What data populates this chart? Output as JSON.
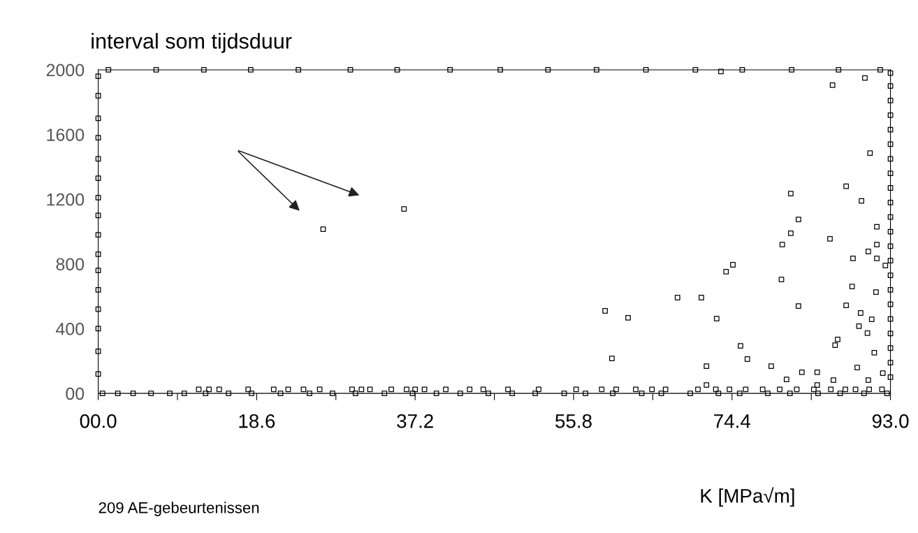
{
  "chart_data": {
    "type": "scatter",
    "title": "interval som tijdsduur",
    "xlabel": "K [MPa√m]",
    "annotations": [
      "209 AE-gebeurtenissen"
    ],
    "marker": "square",
    "grid": false,
    "xlim": [
      0,
      93
    ],
    "ylim": [
      0,
      2000
    ],
    "xticks": [
      {
        "value": 0,
        "label": "00.0"
      },
      {
        "value": 9.3,
        "label": null
      },
      18.6,
      {
        "value": 27.9,
        "label": null
      },
      37.2,
      {
        "value": 46.5,
        "label": null
      },
      55.8,
      {
        "value": 65.1,
        "label": null
      },
      74.4,
      {
        "value": 83.7,
        "label": null
      },
      {
        "value": 93,
        "label": "93.0"
      }
    ],
    "yticks": [
      {
        "value": 0,
        "label": "00"
      },
      400,
      800,
      1200,
      1600,
      2000
    ],
    "series": [
      {
        "color": "#000000",
        "x": [
          26.4,
          35.9,
          73.1,
          86.2,
          90.0,
          90.6,
          87.8,
          81.3,
          89.6,
          82.2,
          91.4,
          81.3,
          85.9,
          80.3,
          91.4,
          90.4,
          88.6,
          91.4,
          92.4,
          74.5,
          73.7,
          80.2,
          88.5,
          91.3,
          68.0,
          70.8,
          82.2,
          87.8,
          59.5,
          62.2,
          72.6,
          89.5,
          90.8,
          89.3,
          90.3,
          86.8,
          86.5,
          75.4,
          91.1,
          60.3,
          76.2,
          71.4,
          79.0,
          89.1,
          80.8,
          82.6,
          84.4,
          86.3,
          90.4,
          92.1,
          71.4,
          84.4,
          11.8,
          13.0,
          14.2,
          17.6,
          20.6,
          22.3,
          24.1,
          26.0,
          29.8,
          30.9,
          31.9,
          34.4,
          36.2,
          37.2,
          38.3,
          40.8,
          43.6,
          45.2,
          48.1,
          51.7,
          56.1,
          59.1,
          60.8,
          63.1,
          65.0,
          66.6,
          70.4,
          72.5,
          74.1,
          76.0,
          78.0,
          80.0,
          82.0,
          84.0,
          86.0,
          87.7,
          88.9,
          90.5,
          92.0,
          0.5,
          2.3,
          4.1,
          6.2,
          8.4,
          10.1,
          12.6,
          15.3,
          18.0,
          21.4,
          24.8,
          27.5,
          30.2,
          33.6,
          36.9,
          39.7,
          42.5,
          45.8,
          48.6,
          51.3,
          54.7,
          57.2,
          60.4,
          63.8,
          66.1,
          69.5,
          72.8,
          75.3,
          78.6,
          81.2,
          84.5,
          87.1,
          89.9,
          92.6,
          0,
          0,
          0,
          0,
          0,
          0,
          0,
          0,
          0,
          0,
          0,
          0,
          0,
          0,
          0,
          0,
          93,
          93,
          93,
          93,
          93,
          93,
          93,
          93,
          93,
          93,
          93,
          93,
          93,
          93,
          93,
          93,
          93,
          93,
          93,
          93,
          93,
          93,
          1.2,
          6.8,
          12.4,
          17.9,
          23.5,
          29.6,
          35.1,
          41.3,
          47.2,
          52.8,
          58.5,
          64.3,
          70.1,
          75.6,
          81.4,
          86.9,
          91.8
        ],
        "values": [
          1015,
          1140,
          1990,
          1905,
          1950,
          1485,
          1280,
          1235,
          1190,
          1075,
          1030,
          990,
          955,
          920,
          920,
          877,
          834,
          834,
          790,
          795,
          752,
          704,
          661,
          626,
          592,
          592,
          540,
          544,
          510,
          467,
          462,
          497,
          458,
          415,
          372,
          333,
          298,
          294,
          251,
          216,
          212,
          168,
          168,
          160,
          86,
          130,
          130,
          82,
          82,
          125,
          52,
          52,
          25,
          25,
          25,
          25,
          25,
          25,
          25,
          25,
          25,
          25,
          25,
          25,
          25,
          25,
          25,
          25,
          25,
          25,
          25,
          25,
          25,
          25,
          25,
          25,
          25,
          25,
          25,
          25,
          25,
          25,
          25,
          25,
          25,
          25,
          25,
          25,
          25,
          25,
          25,
          0,
          0,
          0,
          0,
          0,
          0,
          0,
          0,
          0,
          0,
          0,
          0,
          0,
          0,
          0,
          0,
          0,
          0,
          0,
          0,
          0,
          0,
          0,
          0,
          0,
          0,
          0,
          0,
          0,
          0,
          0,
          0,
          0,
          0,
          1960,
          1840,
          1700,
          1580,
          1450,
          1330,
          1210,
          1100,
          980,
          860,
          760,
          640,
          520,
          400,
          260,
          120,
          1980,
          1900,
          1810,
          1720,
          1630,
          1540,
          1450,
          1360,
          1270,
          1180,
          1090,
          1000,
          910,
          820,
          730,
          640,
          550,
          460,
          370,
          280,
          190,
          100,
          2000,
          2000,
          2000,
          2000,
          2000,
          2000,
          2000,
          2000,
          2000,
          2000,
          2000,
          2000,
          2000,
          2000,
          2000,
          2000,
          2000
        ]
      }
    ]
  }
}
